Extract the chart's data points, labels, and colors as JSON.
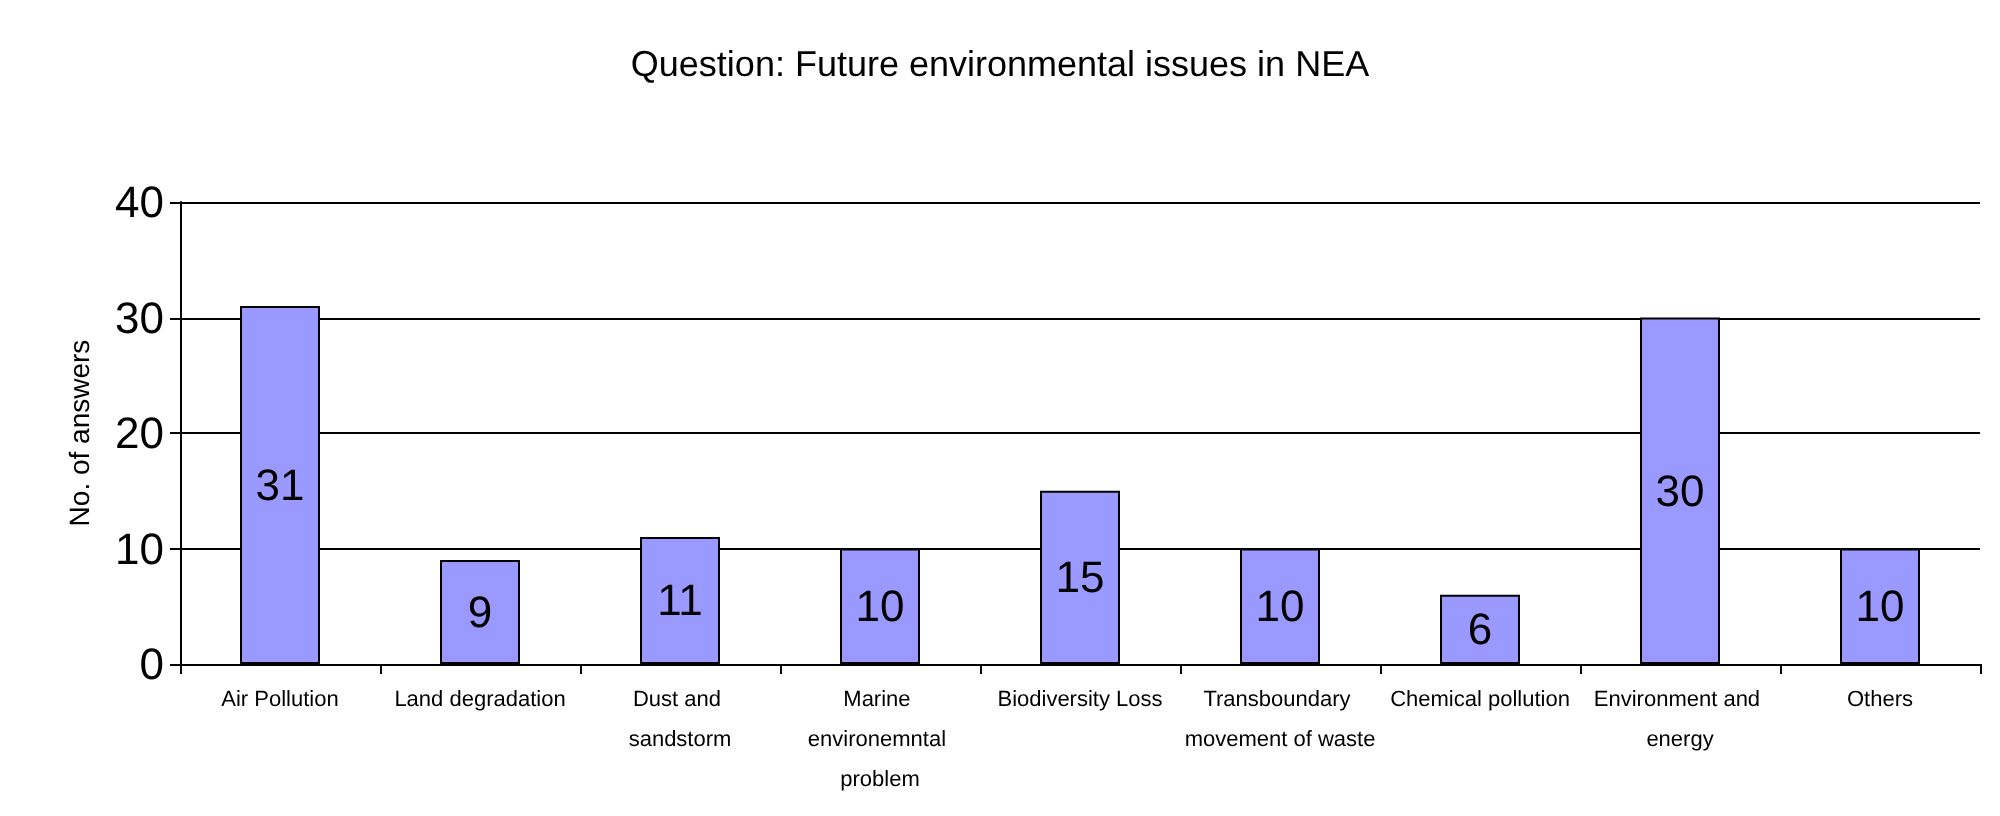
{
  "chart_data": {
    "type": "bar",
    "title": "Question: Future environmental issues in NEA",
    "ylabel": "No. of answers",
    "categories": [
      "Air Pollution",
      "Land degradation",
      "Dust and sandstorm",
      "Marine environemntal problem",
      "Biodiversity Loss",
      "Transboundary movement of waste",
      "Chemical pollution",
      "Environment and energy",
      "Others"
    ],
    "values": [
      31,
      9,
      11,
      10,
      15,
      10,
      6,
      30,
      10
    ],
    "color": "#9999ff",
    "ylim": [
      0,
      40
    ],
    "yticks": [
      0,
      10,
      20,
      30,
      40
    ],
    "grid": "y",
    "data_labels": true
  }
}
